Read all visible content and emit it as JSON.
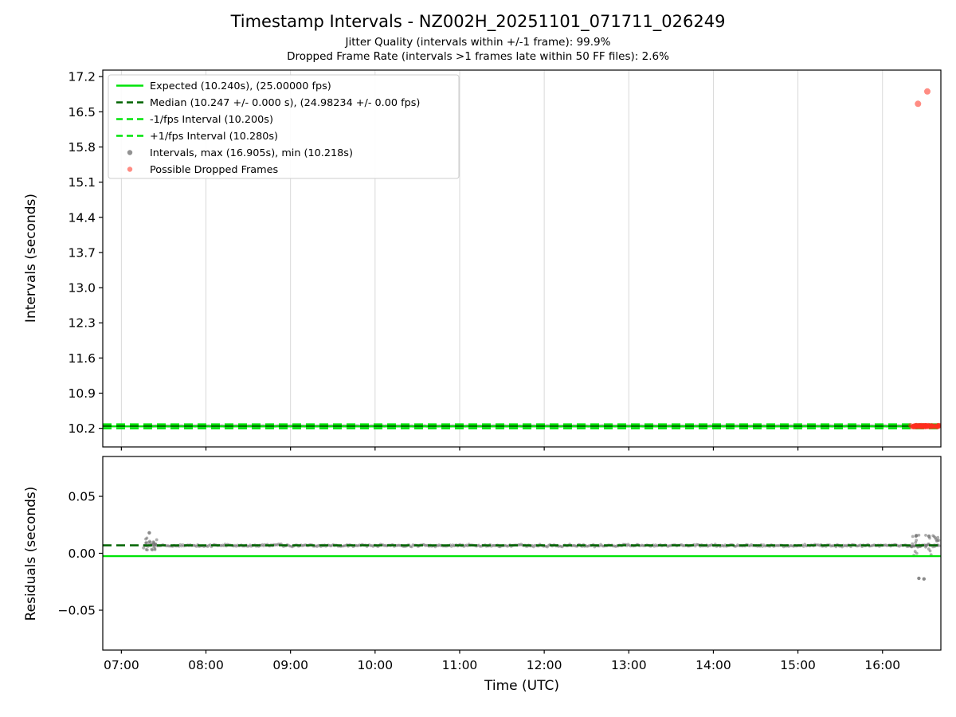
{
  "figure": {
    "title": "Timestamp Intervals - NZ002H_20251101_071711_026249",
    "subtitle1": "Jitter Quality (intervals within +/-1 frame): 99.9%",
    "subtitle2": "Dropped Frame Rate (intervals >1 frames late within 50 FF files): 2.6%",
    "stats": {
      "jitter_quality_pct": 99.9,
      "dropped_frame_rate_pct": 2.6,
      "ff_files": 50
    }
  },
  "colors": {
    "expected": "#00e408",
    "median": "#006400",
    "interval_bounds": "#00e408",
    "points": "#6e6e6e",
    "dropped": "#ff2d1e",
    "grid": "#d9d9d9",
    "spine": "#000000"
  },
  "x_axis": {
    "lim_hours": [
      6.78,
      16.69
    ],
    "ticks": [
      {
        "hour": 7,
        "label": "07:00"
      },
      {
        "hour": 8,
        "label": "08:00"
      },
      {
        "hour": 9,
        "label": "09:00"
      },
      {
        "hour": 10,
        "label": "10:00"
      },
      {
        "hour": 11,
        "label": "11:00"
      },
      {
        "hour": 12,
        "label": "12:00"
      },
      {
        "hour": 13,
        "label": "13:00"
      },
      {
        "hour": 14,
        "label": "14:00"
      },
      {
        "hour": 15,
        "label": "15:00"
      },
      {
        "hour": 16,
        "label": "16:00"
      }
    ]
  },
  "chart_data": [
    {
      "type": "scatter",
      "name": "intervals",
      "ylabel": "Intervals (seconds)",
      "ylim": [
        9.83,
        17.33
      ],
      "grid": "vertical",
      "yticks": [
        {
          "v": 10.2,
          "label": "10.2"
        },
        {
          "v": 10.9,
          "label": "10.9"
        },
        {
          "v": 11.6,
          "label": "11.6"
        },
        {
          "v": 12.3,
          "label": "12.3"
        },
        {
          "v": 13.0,
          "label": "13.0"
        },
        {
          "v": 13.7,
          "label": "13.7"
        },
        {
          "v": 14.4,
          "label": "14.4"
        },
        {
          "v": 15.1,
          "label": "15.1"
        },
        {
          "v": 15.8,
          "label": "15.8"
        },
        {
          "v": 16.5,
          "label": "16.5"
        },
        {
          "v": 17.2,
          "label": "17.2"
        }
      ],
      "lines": [
        {
          "name": "expected",
          "value": 10.24,
          "style": "solid",
          "color_key": "expected",
          "legend": "Expected (10.240s), (25.00000 fps)"
        },
        {
          "name": "median",
          "value": 10.247,
          "style": "dashed",
          "color_key": "median",
          "legend": "Median (10.247 +/- 0.000 s), (24.98234 +/- 0.00 fps)"
        },
        {
          "name": "minus-1fps",
          "value": 10.2,
          "style": "dashed",
          "color_key": "interval_bounds",
          "legend": "-1/fps Interval (10.200s)"
        },
        {
          "name": "plus-1fps",
          "value": 10.28,
          "style": "dashed",
          "color_key": "interval_bounds",
          "legend": "+1/fps Interval (10.280s)"
        }
      ],
      "scatter": {
        "legend": "Intervals, max (16.905s), min (10.218s)",
        "max": 16.905,
        "min": 10.218,
        "band": {
          "x_start": 7.27,
          "x_end": 16.67,
          "value": 10.247,
          "jitter": 0.006,
          "n": 640
        }
      },
      "dropped": {
        "legend": "Possible Dropped Frames",
        "cluster": {
          "x_start": 16.33,
          "x_end": 16.68,
          "y_min": 10.225,
          "y_max": 10.262,
          "n": 90
        },
        "outliers": [
          [
            16.42,
            16.66
          ],
          [
            16.53,
            16.905
          ]
        ]
      }
    },
    {
      "type": "scatter",
      "name": "residuals",
      "ylabel": "Residuals (seconds)",
      "xlabel": "Time (UTC)",
      "ylim": [
        -0.085,
        0.085
      ],
      "grid": "none",
      "yticks": [
        {
          "v": 0.05,
          "label": "0.05"
        },
        {
          "v": 0.0,
          "label": "0.00"
        },
        {
          "v": -0.05,
          "label": "−0.05"
        }
      ],
      "lines": [
        {
          "name": "expected",
          "value": -0.0025,
          "style": "solid",
          "color_key": "expected"
        },
        {
          "name": "median",
          "value": 0.007,
          "style": "dashed",
          "color_key": "median"
        }
      ],
      "scatter": {
        "band": {
          "x_start": 7.27,
          "x_end": 16.67,
          "value": 0.0068,
          "jitter": 0.0016,
          "n": 640
        },
        "clusters": [
          {
            "x_start": 7.26,
            "x_end": 7.42,
            "y_min": 0.002,
            "y_max": 0.014,
            "n": 22
          },
          {
            "x_start": 16.33,
            "x_end": 16.67,
            "y_min": -0.002,
            "y_max": 0.016,
            "n": 34
          }
        ],
        "outliers": [
          [
            7.33,
            0.018
          ],
          [
            16.43,
            -0.022
          ],
          [
            16.49,
            -0.0225
          ],
          [
            16.4,
            0.0155
          ],
          [
            16.55,
            0.015
          ]
        ]
      }
    }
  ]
}
